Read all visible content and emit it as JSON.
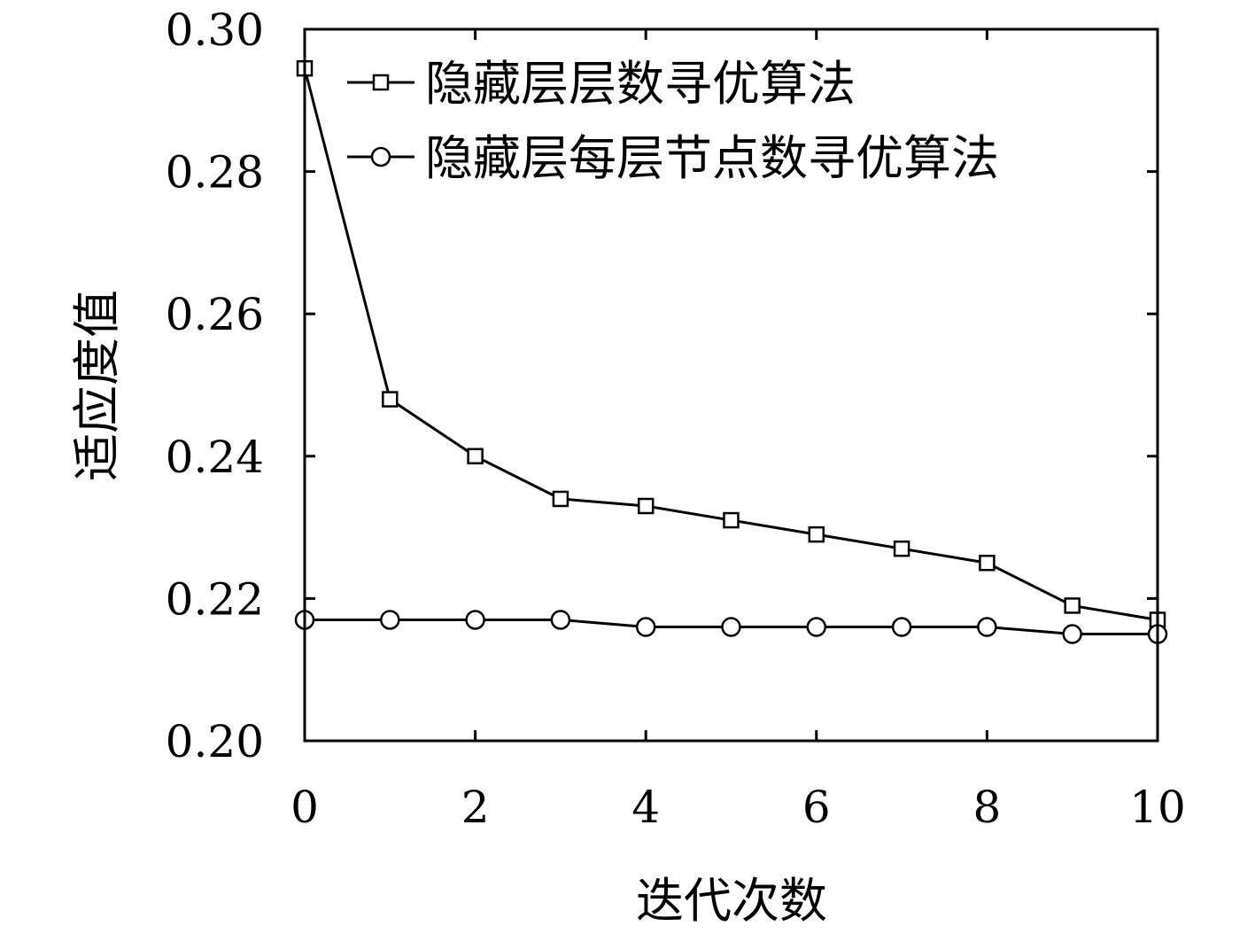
{
  "chart_data": {
    "type": "line",
    "title": "",
    "xlabel": "迭代次数",
    "ylabel": "适应度值",
    "xlim": [
      0,
      10
    ],
    "ylim": [
      0.2,
      0.3
    ],
    "xticks": [
      0,
      2,
      4,
      6,
      8,
      10
    ],
    "xtick_labels": [
      "0",
      "2",
      "4",
      "6",
      "8",
      "10"
    ],
    "yticks": [
      0.2,
      0.22,
      0.24,
      0.26,
      0.28,
      0.3
    ],
    "ytick_labels": [
      "0.20",
      "0.22",
      "0.24",
      "0.26",
      "0.28",
      "0.30"
    ],
    "grid": false,
    "legend_position": "top-right",
    "x": [
      0,
      1,
      2,
      3,
      4,
      5,
      6,
      7,
      8,
      9,
      10
    ],
    "series": [
      {
        "name": "隐藏层层数寻优算法",
        "marker": "square",
        "color": "#000000",
        "values": [
          0.2945,
          0.248,
          0.24,
          0.234,
          0.233,
          0.231,
          0.229,
          0.227,
          0.225,
          0.219,
          0.217
        ]
      },
      {
        "name": "隐藏层每层节点数寻优算法",
        "marker": "circle",
        "color": "#000000",
        "values": [
          0.217,
          0.217,
          0.217,
          0.217,
          0.216,
          0.216,
          0.216,
          0.216,
          0.216,
          0.215,
          0.215
        ]
      }
    ]
  }
}
